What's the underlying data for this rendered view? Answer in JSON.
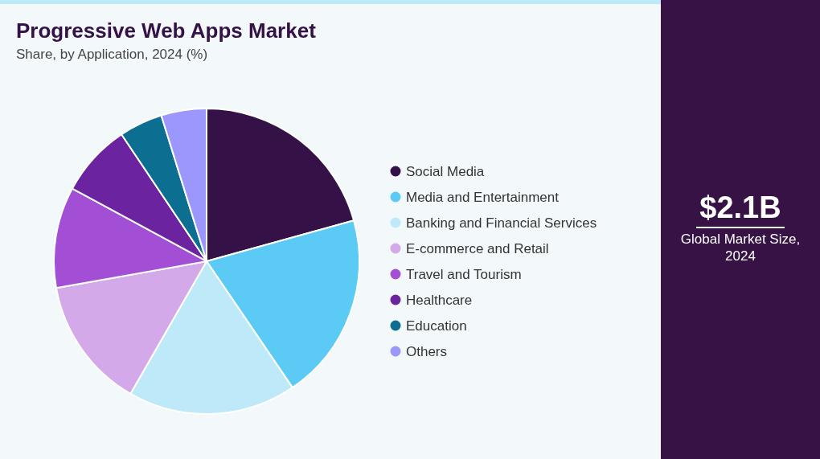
{
  "chart_data": {
    "type": "pie",
    "title": "Progressive Web Apps Market",
    "subtitle": "Share, by Application, 2024 (%)",
    "categories": [
      "Social Media",
      "Media and Entertainment",
      "Banking and Financial Services",
      "E-commerce and Retail",
      "Travel and Tourism",
      "Healthcare",
      "Education",
      "Others"
    ],
    "values": [
      20.7,
      19.8,
      17.8,
      13.9,
      10.7,
      7.7,
      4.6,
      4.8
    ],
    "colors": [
      "#341146",
      "#5bcbf5",
      "#bde9f9",
      "#d4a9ea",
      "#a24fd6",
      "#6c23a0",
      "#0c6e91",
      "#9b97fd"
    ],
    "legend": "right",
    "annotations": [
      "$2.1B",
      "Global Market Size, 2024"
    ]
  }
}
